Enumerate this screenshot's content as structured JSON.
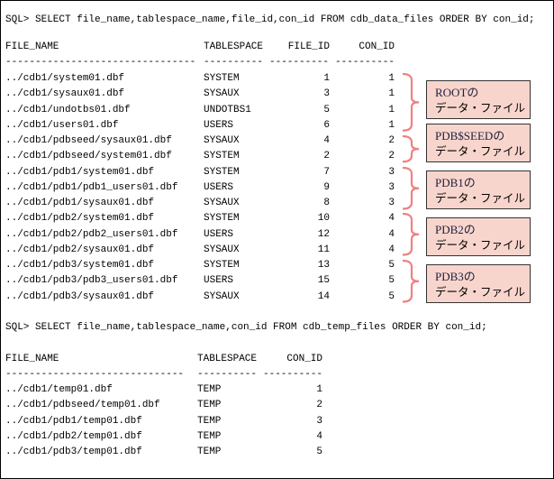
{
  "query1": {
    "sql": "SQL> SELECT file_name,tablespace_name,file_id,con_id FROM cdb_data_files ORDER BY con_id;",
    "headers": [
      "FILE_NAME",
      "TABLESPACE",
      "FILE_ID",
      "CON_ID"
    ],
    "dashes": [
      "--------------------------------",
      "----------",
      "----------",
      "----------"
    ],
    "rows": [
      [
        "../cdb1/system01.dbf",
        "SYSTEM",
        "1",
        "1"
      ],
      [
        "../cdb1/sysaux01.dbf",
        "SYSAUX",
        "3",
        "1"
      ],
      [
        "../cdb1/undotbs01.dbf",
        "UNDOTBS1",
        "5",
        "1"
      ],
      [
        "../cdb1/users01.dbf",
        "USERS",
        "6",
        "1"
      ],
      [
        "../cdb1/pdbseed/sysaux01.dbf",
        "SYSAUX",
        "4",
        "2"
      ],
      [
        "../cdb1/pdbseed/system01.dbf",
        "SYSTEM",
        "2",
        "2"
      ],
      [
        "../cdb1/pdb1/system01.dbf",
        "SYSTEM",
        "7",
        "3"
      ],
      [
        "../cdb1/pdb1/pdb1_users01.dbf",
        "USERS",
        "9",
        "3"
      ],
      [
        "../cdb1/pdb1/sysaux01.dbf",
        "SYSAUX",
        "8",
        "3"
      ],
      [
        "../cdb1/pdb2/system01.dbf",
        "SYSTEM",
        "10",
        "4"
      ],
      [
        "../cdb1/pdb2/pdb2_users01.dbf",
        "USERS",
        "12",
        "4"
      ],
      [
        "../cdb1/pdb2/sysaux01.dbf",
        "SYSAUX",
        "11",
        "4"
      ],
      [
        "../cdb1/pdb3/system01.dbf",
        "SYSTEM",
        "13",
        "5"
      ],
      [
        "../cdb1/pdb3/pdb3_users01.dbf",
        "USERS",
        "15",
        "5"
      ],
      [
        "../cdb1/pdb3/sysaux01.dbf",
        "SYSAUX",
        "14",
        "5"
      ]
    ]
  },
  "annotations": [
    {
      "title": "ROOTの",
      "subtitle": "データ・ファイル",
      "first_row": 0,
      "last_row": 3
    },
    {
      "title": "PDB$SEEDの",
      "subtitle": "データ・ファイル",
      "first_row": 4,
      "last_row": 5
    },
    {
      "title": "PDB1の",
      "subtitle": "データ・ファイル",
      "first_row": 6,
      "last_row": 8
    },
    {
      "title": "PDB2の",
      "subtitle": "データ・ファイル",
      "first_row": 9,
      "last_row": 11
    },
    {
      "title": "PDB3の",
      "subtitle": "データ・ファイル",
      "first_row": 12,
      "last_row": 14
    }
  ],
  "query2": {
    "sql": "SQL> SELECT file_name,tablespace_name,con_id FROM cdb_temp_files ORDER BY con_id;",
    "headers": [
      "FILE_NAME",
      "TABLESPACE",
      "CON_ID"
    ],
    "dashes": [
      "------------------------------",
      "----------",
      "----------"
    ],
    "rows": [
      [
        "../cdb1/temp01.dbf",
        "TEMP",
        "1"
      ],
      [
        "../cdb1/pdbseed/temp01.dbf",
        "TEMP",
        "2"
      ],
      [
        "../cdb1/pdb1/temp01.dbf",
        "TEMP",
        "3"
      ],
      [
        "../cdb1/pdb2/temp01.dbf",
        "TEMP",
        "4"
      ],
      [
        "../cdb1/pdb3/temp01.dbf",
        "TEMP",
        "5"
      ]
    ]
  },
  "colors": {
    "brace": "#f08080",
    "box_fill": "#f8d5cc"
  }
}
